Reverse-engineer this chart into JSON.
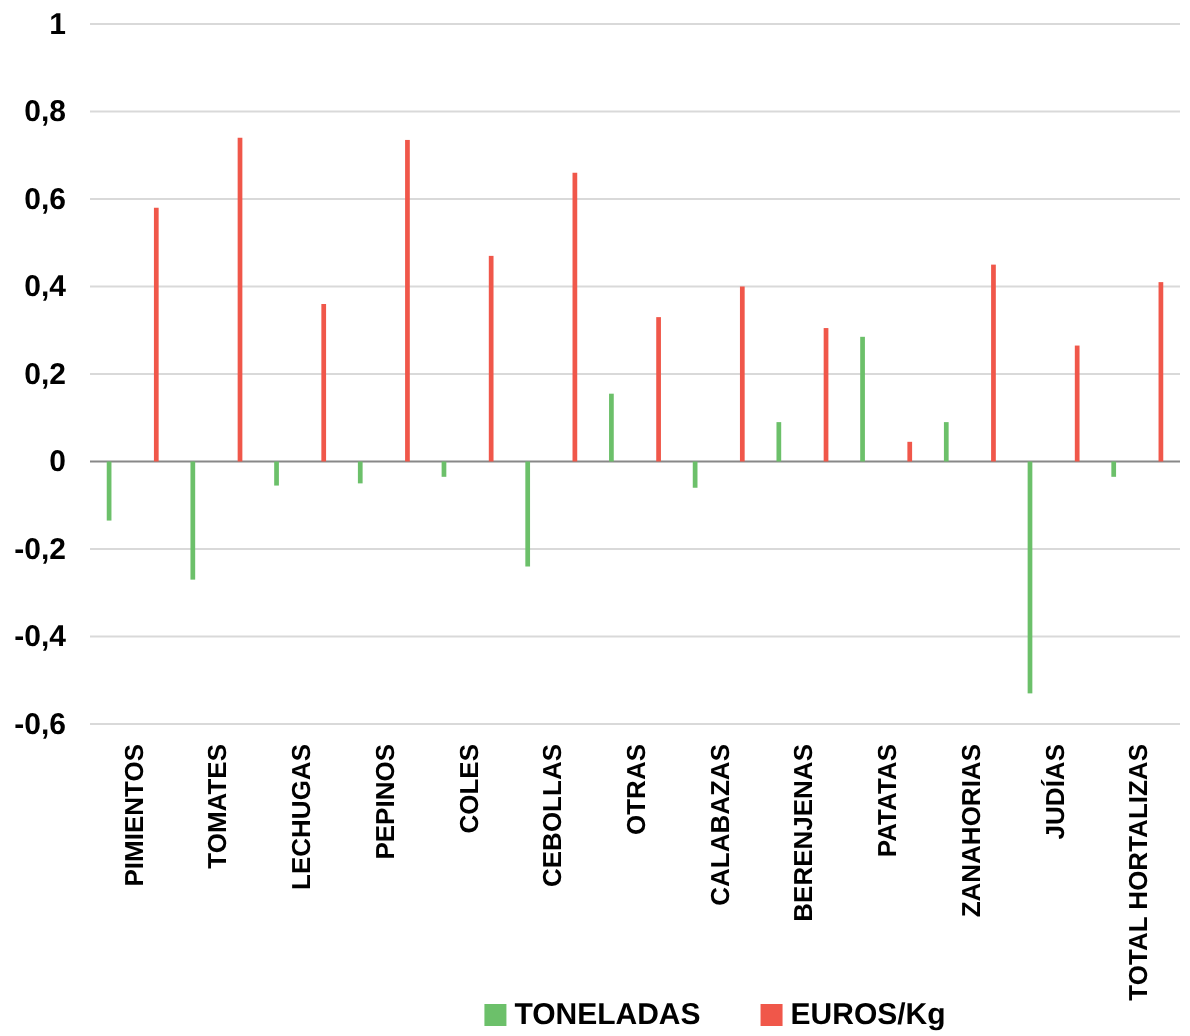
{
  "chart_data": {
    "type": "bar",
    "categories": [
      "PIMIENTOS",
      "TOMATES",
      "LECHUGAS",
      "PEPINOS",
      "COLES",
      "CEBOLLAS",
      "OTRAS",
      "CALABAZAS",
      "BERENJENAS",
      "PATATAS",
      "ZANAHORIAS",
      "JUDÍAS",
      "TOTAL HORTALIZAS"
    ],
    "series": [
      {
        "name": "TONELADAS",
        "color": "#6cc06a",
        "values": [
          -0.135,
          -0.27,
          -0.055,
          -0.05,
          -0.035,
          -0.24,
          0.155,
          -0.06,
          0.09,
          0.285,
          0.09,
          -0.53,
          -0.035
        ]
      },
      {
        "name": "EUROS/Kg",
        "color": "#f0574a",
        "values": [
          0.58,
          0.74,
          0.36,
          0.735,
          0.47,
          0.66,
          0.33,
          0.4,
          0.305,
          0.045,
          0.45,
          0.265,
          0.41
        ]
      }
    ],
    "ylim": [
      -0.6,
      1
    ],
    "yticks": [
      {
        "value": -0.6,
        "label": "-0,6"
      },
      {
        "value": -0.4,
        "label": "-0,4"
      },
      {
        "value": -0.2,
        "label": "-0,2"
      },
      0,
      {
        "value": 0.2,
        "label": "0,2"
      },
      {
        "value": 0.4,
        "label": "0,4"
      },
      {
        "value": 0.6,
        "label": "0,6"
      },
      {
        "value": 0.8,
        "label": "0,8"
      },
      1
    ],
    "grid": "y",
    "legend": "bottom"
  }
}
